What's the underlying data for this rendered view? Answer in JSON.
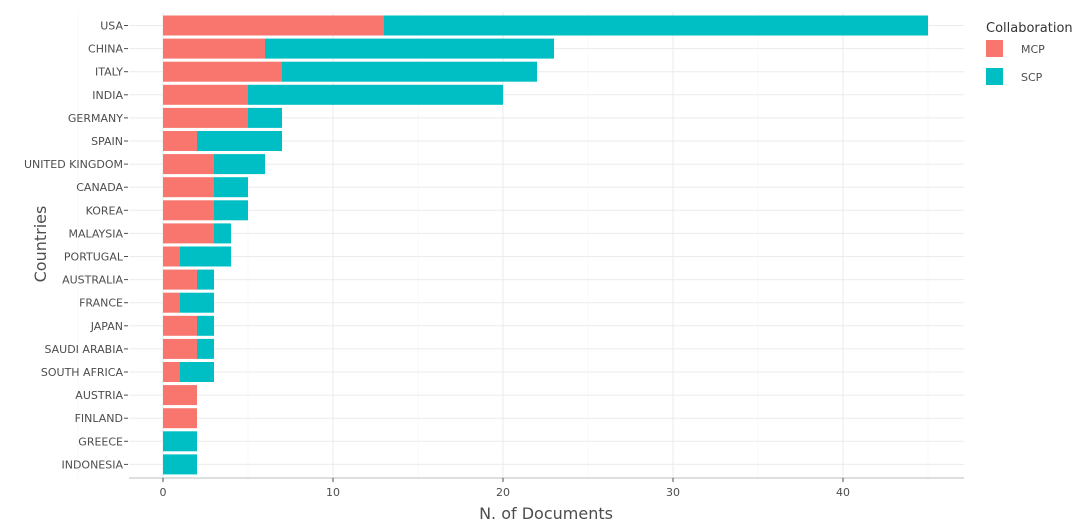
{
  "chart_data": {
    "type": "bar",
    "orientation": "horizontal",
    "stacked": true,
    "title": "",
    "xlabel": "N. of Documents",
    "ylabel": "Countries",
    "xlim": [
      0,
      47
    ],
    "x_ticks": [
      0,
      10,
      20,
      30,
      40
    ],
    "grid": true,
    "legend_position": "top-right",
    "legend_title": "Collaboration",
    "categories": [
      "USA",
      "CHINA",
      "ITALY",
      "INDIA",
      "GERMANY",
      "SPAIN",
      "UNITED KINGDOM",
      "CANADA",
      "KOREA",
      "MALAYSIA",
      "PORTUGAL",
      "AUSTRALIA",
      "FRANCE",
      "JAPAN",
      "SAUDI ARABIA",
      "SOUTH AFRICA",
      "AUSTRIA",
      "FINLAND",
      "GREECE",
      "INDONESIA"
    ],
    "series": [
      {
        "name": "MCP",
        "color": "#F8766D",
        "values": [
          13,
          6,
          7,
          5,
          5,
          2,
          3,
          3,
          3,
          3,
          1,
          2,
          1,
          2,
          2,
          1,
          2,
          2,
          0,
          0
        ]
      },
      {
        "name": "SCP",
        "color": "#00BFC4",
        "values": [
          32,
          17,
          15,
          15,
          2,
          5,
          3,
          2,
          2,
          1,
          3,
          1,
          2,
          1,
          1,
          2,
          0,
          0,
          2,
          2
        ]
      }
    ]
  }
}
